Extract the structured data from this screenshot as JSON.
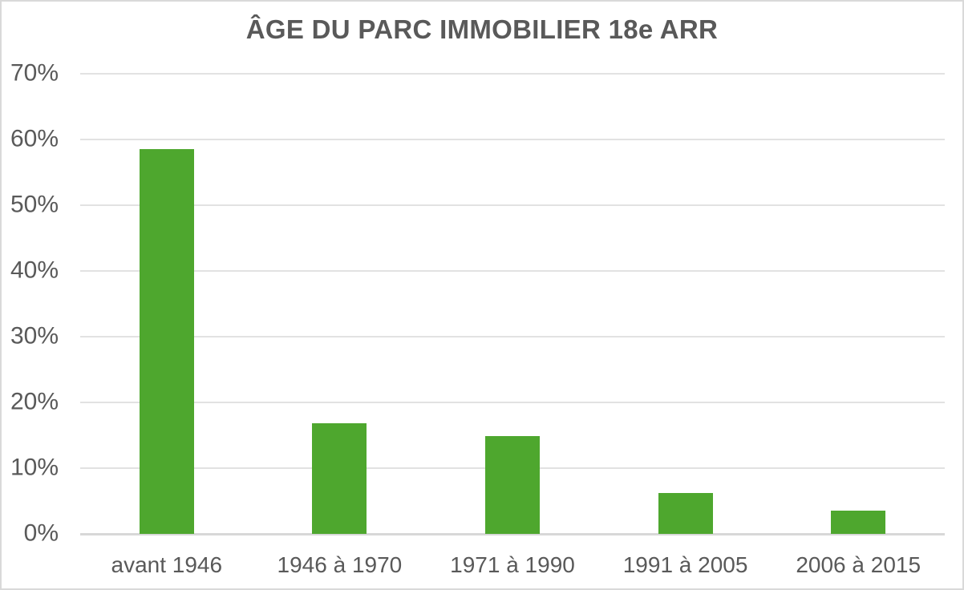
{
  "chart_data": {
    "type": "bar",
    "title": "ÂGE DU PARC IMMOBILIER 18e ARR",
    "categories": [
      "avant 1946",
      "1946 à 1970",
      "1971 à 1990",
      "1991 à 2005",
      "2006 à 2015"
    ],
    "values": [
      58.5,
      16.8,
      14.9,
      6.2,
      3.5
    ],
    "unit": "%",
    "xlabel": "",
    "ylabel": "",
    "ylim": [
      0,
      70
    ],
    "ytick_step": 10,
    "ytick_labels": [
      "0%",
      "10%",
      "20%",
      "30%",
      "40%",
      "50%",
      "60%",
      "70%"
    ],
    "grid": "horizontal",
    "legend": "none",
    "bar_color": "#4EA72E",
    "text_color": "#595959",
    "gridline_color": "#E2E2E2",
    "axisline_color": "#D8D8D8",
    "border_color": "#D9D9D9",
    "background_color": "#FFFFFF"
  }
}
